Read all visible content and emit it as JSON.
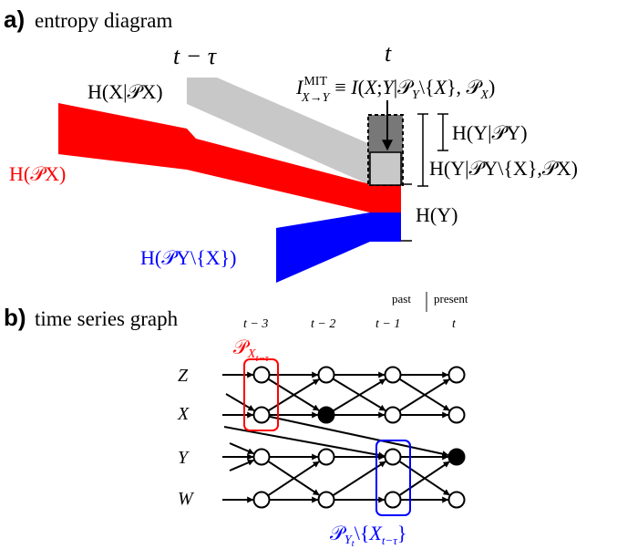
{
  "panel_a": {
    "letter": "a)",
    "title": "entropy diagram",
    "time_past": "t − τ",
    "time_now": "t",
    "label_h_x_given_px": "H(X|𝒫X)",
    "label_mit": "I MIT X→Y ≡ I(X;Y|𝒫Y\\{X},𝒫X)",
    "label_h_px": "H(𝒫X)",
    "label_h_y_given_py": "H(Y|𝒫Y)",
    "label_h_y_given_py_minus_x_px": "H(Y|𝒫Y\\{X},𝒫X)",
    "label_h_y": "H(Y)",
    "label_h_py_minus_x": "H(𝒫Y\\{X})",
    "colors": {
      "red": "#ff0000",
      "blue": "#0000ff",
      "light_gray": "#c8c8c8",
      "dark_gray": "#787878"
    }
  },
  "panel_b": {
    "letter": "b)",
    "title": "time series graph",
    "past_label": "past",
    "present_label": "present",
    "time_labels": [
      "t − 3",
      "t − 2",
      "t − 1",
      "t"
    ],
    "rows": [
      "Z",
      "X",
      "Y",
      "W"
    ],
    "label_px": "𝒫X t−τ",
    "label_py": "𝒫Y t\\{X t−τ}"
  }
}
